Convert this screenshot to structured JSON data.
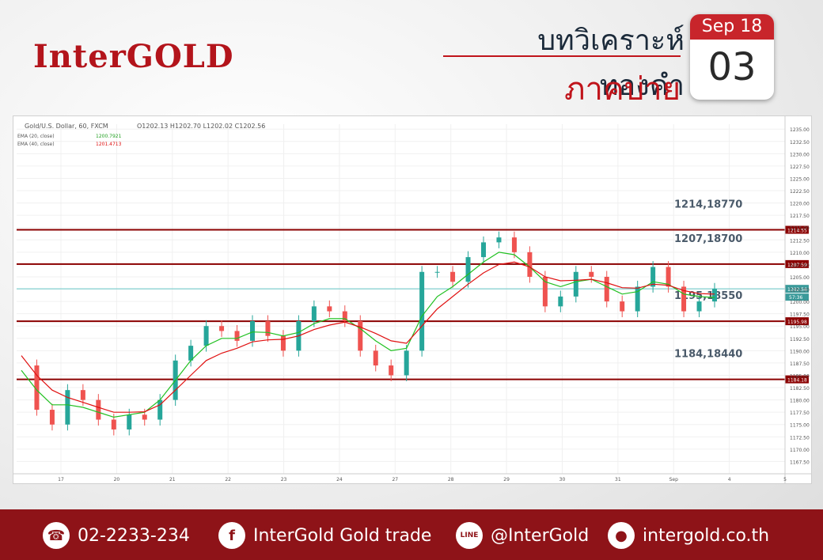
{
  "brand": {
    "logo_text": "InterGOLD"
  },
  "header": {
    "title": "บทวิเคราะห์ทองคำ",
    "subtitle": "ภาคบ่าย"
  },
  "calendar": {
    "month_year": "Sep 18",
    "day": "03"
  },
  "chart_header": {
    "symbol": "Gold/U.S. Dollar, 60, FXCM",
    "ohlc": "O1202.13  H1202.70  L1202.02  C1202.56",
    "ema20": "EMA (20, close)",
    "ema20_value": "1200.7921",
    "ema40": "EMA (40, close)",
    "ema40_value": "1201.4713"
  },
  "chart_data": {
    "type": "line",
    "ylim": [
      1165,
      1236
    ],
    "y_ticks": [
      1167.5,
      1170,
      1172.5,
      1175,
      1177.5,
      1180,
      1182.5,
      1185,
      1187.5,
      1190,
      1192.5,
      1195,
      1197.5,
      1200,
      1202.5,
      1205,
      1207.5,
      1210,
      1212.5,
      1215,
      1217.5,
      1220,
      1222.5,
      1225,
      1227.5,
      1230,
      1232.5,
      1235
    ],
    "x_tick_labels": [
      "17",
      "20",
      "21",
      "22",
      "23",
      "24",
      "27",
      "28",
      "29",
      "30",
      "31",
      "Sep",
      "4",
      "5"
    ],
    "levels": [
      {
        "price": 1214.55,
        "tag": "1214.55",
        "label": "1214,18770"
      },
      {
        "price": 1207.59,
        "tag": "1207.59",
        "label": "1207,18700"
      },
      {
        "price": 1195.98,
        "tag": "1195.98",
        "label": "1195,18550"
      },
      {
        "price": 1184.18,
        "tag": "1184.18",
        "label": "1184,18440"
      }
    ],
    "current_price": {
      "value": 1202.56,
      "tag": "1202.56",
      "countdown": "57:36"
    },
    "series": [
      {
        "name": "Price",
        "values": [
          1187,
          1178,
          1175,
          1182,
          1180,
          1176,
          1174,
          1177,
          1176,
          1180,
          1188,
          1191,
          1195,
          1194,
          1192,
          1196,
          1193,
          1190,
          1196,
          1199,
          1198,
          1196,
          1190,
          1187,
          1185,
          1190,
          1206,
          1206,
          1204,
          1209,
          1212,
          1213,
          1210,
          1205,
          1199,
          1201,
          1206,
          1205,
          1200,
          1198,
          1203,
          1207,
          1203,
          1198,
          1200,
          1202.56
        ]
      },
      {
        "name": "EMA (20, close)",
        "values": [
          1186,
          1182,
          1179,
          1179,
          1178.5,
          1177.5,
          1176.5,
          1177,
          1177.5,
          1180,
          1184,
          1188,
          1191,
          1192.5,
          1192.5,
          1193.8,
          1193.7,
          1193,
          1193.7,
          1195.5,
          1196.5,
          1196.5,
          1194.5,
          1192,
          1190,
          1190.5,
          1197,
          1201,
          1203,
          1205.5,
          1208,
          1210,
          1209.5,
          1207,
          1204,
          1203,
          1204,
          1204.5,
          1203,
          1201.5,
          1202,
          1204,
          1203.5,
          1201.5,
          1201,
          1200.8
        ]
      },
      {
        "name": "EMA (40, close)",
        "values": [
          1189,
          1185,
          1182,
          1180.5,
          1179.5,
          1178.5,
          1177.5,
          1177.5,
          1177.6,
          1179,
          1182,
          1185,
          1188,
          1189.5,
          1190.5,
          1191.8,
          1192.2,
          1192.3,
          1193,
          1194.3,
          1195.2,
          1195.8,
          1194.8,
          1193.5,
          1192,
          1191.5,
          1195,
          1198.5,
          1201,
          1203.5,
          1205.8,
          1207.5,
          1208,
          1207,
          1205,
          1204.2,
          1204.3,
          1204.5,
          1203.8,
          1202.8,
          1202.7,
          1203.5,
          1203.3,
          1202.2,
          1201.6,
          1201.5
        ]
      }
    ]
  },
  "footer": {
    "phone": "02-2233-234",
    "facebook": "InterGold Gold trade",
    "line": "@InterGold",
    "website": "intergold.co.th"
  },
  "colors": {
    "brand_red": "#b3141b",
    "footer_bg": "#8e1318",
    "level_line": "#8b0000",
    "ema20": "#20c020",
    "ema40": "#e01010",
    "candle_up": "#26a69a",
    "candle_down": "#ef5350",
    "current_line": "#66c7c7"
  }
}
